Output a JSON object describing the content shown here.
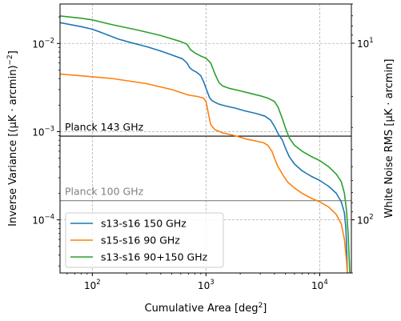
{
  "chart_data": {
    "type": "line",
    "xlabel_main": "Cumulative Area [deg",
    "xlabel_sup": "2",
    "xlabel_end": "]",
    "ylabel_left": "Inverse Variance [(μK · arcmin)",
    "ylabel_left_sup": "−2",
    "ylabel_left_end": "]",
    "ylabel_right": "White Noise RMS [μK · arcmin]",
    "x_scale": "log",
    "y_scale": "log",
    "xlim": [
      52,
      19000
    ],
    "ylim": [
      2.5e-05,
      0.028
    ],
    "y2lim": [
      200,
      6.0
    ],
    "grid": true,
    "legend_position": "lower-left",
    "x_ticks": [
      {
        "value": 100,
        "base": "10",
        "exp": "2"
      },
      {
        "value": 1000,
        "base": "10",
        "exp": "3"
      },
      {
        "value": 10000,
        "base": "10",
        "exp": "4"
      }
    ],
    "y_ticks": [
      {
        "value": 0.0001,
        "base": "10",
        "exp": "−4"
      },
      {
        "value": 0.001,
        "base": "10",
        "exp": "−3"
      },
      {
        "value": 0.01,
        "base": "10",
        "exp": "−2"
      }
    ],
    "y2_ticks": [
      {
        "value": 10,
        "base": "10",
        "exp": "1"
      },
      {
        "value": 100,
        "base": "10",
        "exp": "2"
      }
    ],
    "hlines": [
      {
        "label": "Planck 143 GHz",
        "value": 0.00089,
        "color": "#000000"
      },
      {
        "label": "Planck 100 GHz",
        "value": 0.000165,
        "color": "#808080"
      }
    ],
    "series": [
      {
        "name": "s13-s16 150 GHz",
        "color": "#1f77b4",
        "points": [
          [
            52,
            0.0172
          ],
          [
            80,
            0.0155
          ],
          [
            100,
            0.0145
          ],
          [
            130,
            0.0128
          ],
          [
            170,
            0.0112
          ],
          [
            220,
            0.0102
          ],
          [
            300,
            0.0092
          ],
          [
            400,
            0.0082
          ],
          [
            500,
            0.0074
          ],
          [
            620,
            0.0067
          ],
          [
            680,
            0.006
          ],
          [
            720,
            0.0053
          ],
          [
            760,
            0.005
          ],
          [
            830,
            0.0047
          ],
          [
            900,
            0.0043
          ],
          [
            960,
            0.0036
          ],
          [
            1030,
            0.0028
          ],
          [
            1080,
            0.0024
          ],
          [
            1130,
            0.00225
          ],
          [
            1200,
            0.00215
          ],
          [
            1300,
            0.00205
          ],
          [
            1500,
            0.00195
          ],
          [
            1800,
            0.00185
          ],
          [
            2200,
            0.00172
          ],
          [
            2800,
            0.0016
          ],
          [
            3300,
            0.0015
          ],
          [
            3700,
            0.00135
          ],
          [
            4000,
            0.00115
          ],
          [
            4300,
            0.00095
          ],
          [
            4700,
            0.0008
          ],
          [
            5000,
            0.00065
          ],
          [
            5400,
            0.00052
          ],
          [
            6000,
            0.00043
          ],
          [
            7000,
            0.00036
          ],
          [
            8500,
            0.00031
          ],
          [
            10000,
            0.00028
          ],
          [
            12000,
            0.00024
          ],
          [
            14000,
            0.0002
          ],
          [
            15500,
            0.00016
          ],
          [
            16500,
            0.00012
          ],
          [
            17000,
            8e-05
          ],
          [
            17300,
            4.5e-05
          ],
          [
            17500,
            2.5e-05
          ]
        ]
      },
      {
        "name": "s15-s16 90 GHz",
        "color": "#ff7f0e",
        "points": [
          [
            52,
            0.0045
          ],
          [
            80,
            0.0043
          ],
          [
            150,
            0.004
          ],
          [
            300,
            0.0035
          ],
          [
            500,
            0.003
          ],
          [
            700,
            0.0026
          ],
          [
            850,
            0.0025
          ],
          [
            950,
            0.0024
          ],
          [
            1000,
            0.0022
          ],
          [
            1050,
            0.0016
          ],
          [
            1100,
            0.0012
          ],
          [
            1200,
            0.00105
          ],
          [
            1400,
            0.00097
          ],
          [
            1800,
            0.0009
          ],
          [
            2300,
            0.00082
          ],
          [
            2800,
            0.00078
          ],
          [
            3200,
            0.00075
          ],
          [
            3500,
            0.0007
          ],
          [
            3800,
            0.0006
          ],
          [
            4000,
            0.0005
          ],
          [
            4300,
            0.0004
          ],
          [
            4700,
            0.00033
          ],
          [
            5200,
            0.00027
          ],
          [
            6000,
            0.00023
          ],
          [
            7000,
            0.0002
          ],
          [
            8500,
            0.000175
          ],
          [
            10000,
            0.00016
          ],
          [
            12000,
            0.00014
          ],
          [
            14000,
            0.000115
          ],
          [
            15500,
            9e-05
          ],
          [
            16500,
            6e-05
          ],
          [
            17200,
            3.5e-05
          ],
          [
            17500,
            2.5e-05
          ]
        ]
      },
      {
        "name": "s13-s16 90+150 GHz",
        "color": "#2ca02c",
        "points": [
          [
            52,
            0.0205
          ],
          [
            80,
            0.0193
          ],
          [
            100,
            0.0185
          ],
          [
            150,
            0.0163
          ],
          [
            250,
            0.0142
          ],
          [
            400,
            0.0123
          ],
          [
            600,
            0.0105
          ],
          [
            680,
            0.0098
          ],
          [
            730,
            0.0085
          ],
          [
            800,
            0.0078
          ],
          [
            900,
            0.0072
          ],
          [
            1000,
            0.0068
          ],
          [
            1100,
            0.006
          ],
          [
            1200,
            0.0045
          ],
          [
            1300,
            0.0036
          ],
          [
            1400,
            0.0033
          ],
          [
            1600,
            0.0031
          ],
          [
            2000,
            0.0029
          ],
          [
            2500,
            0.0027
          ],
          [
            3000,
            0.00255
          ],
          [
            3500,
            0.0024
          ],
          [
            4000,
            0.0022
          ],
          [
            4300,
            0.0019
          ],
          [
            4700,
            0.0014
          ],
          [
            5000,
            0.0011
          ],
          [
            5400,
            0.00085
          ],
          [
            6000,
            0.0007
          ],
          [
            7000,
            0.0006
          ],
          [
            8500,
            0.00052
          ],
          [
            10000,
            0.00047
          ],
          [
            12000,
            0.0004
          ],
          [
            14000,
            0.00033
          ],
          [
            15500,
            0.00027
          ],
          [
            16500,
            0.0002
          ],
          [
            17200,
            0.00013
          ],
          [
            17800,
            7e-05
          ],
          [
            18200,
            3.5e-05
          ],
          [
            18400,
            2.5e-05
          ]
        ]
      }
    ]
  }
}
